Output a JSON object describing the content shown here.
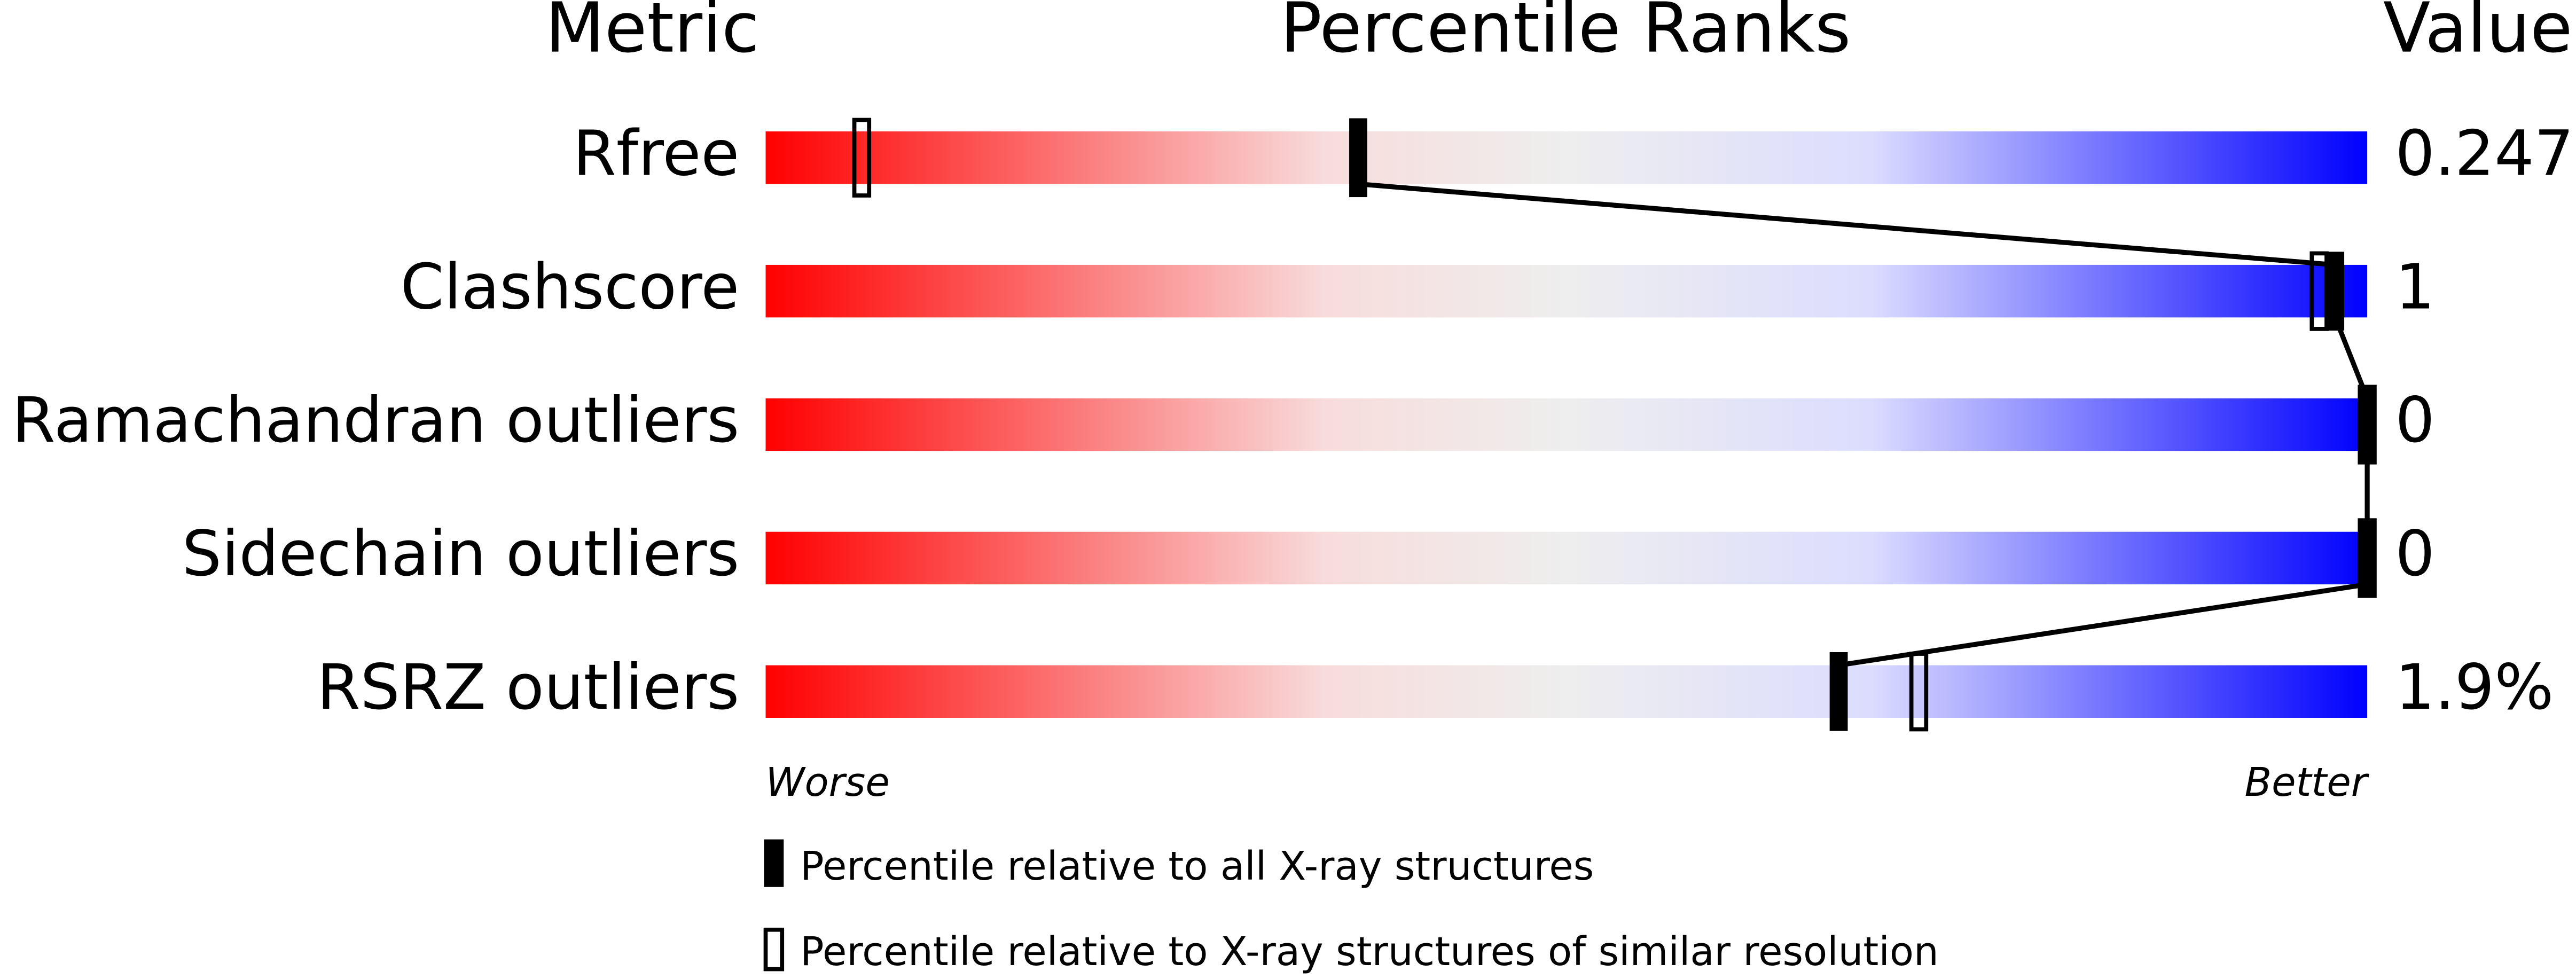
{
  "chart_data": {
    "type": "percentile-slider",
    "headers": [
      "Metric",
      "Percentile Ranks",
      "Value"
    ],
    "categories": [
      "Rfree",
      "Clashscore",
      "Ramachandran outliers",
      "Sidechain outliers",
      "RSRZ outliers"
    ],
    "value_labels": [
      "0.247",
      "1",
      "0",
      "0",
      "1.9%"
    ],
    "xlim": [
      0,
      100
    ],
    "axis_labels": [
      "Worse",
      "Better"
    ],
    "series": [
      {
        "name": "Percentile relative to all X-ray structures",
        "color": "#000000",
        "values": [
          37,
          98,
          100,
          100,
          67
        ]
      },
      {
        "name": "Percentile relative to X-ray structures of similar resolution",
        "color": "#000000",
        "values": [
          6,
          97,
          100,
          100,
          72
        ]
      }
    ]
  }
}
